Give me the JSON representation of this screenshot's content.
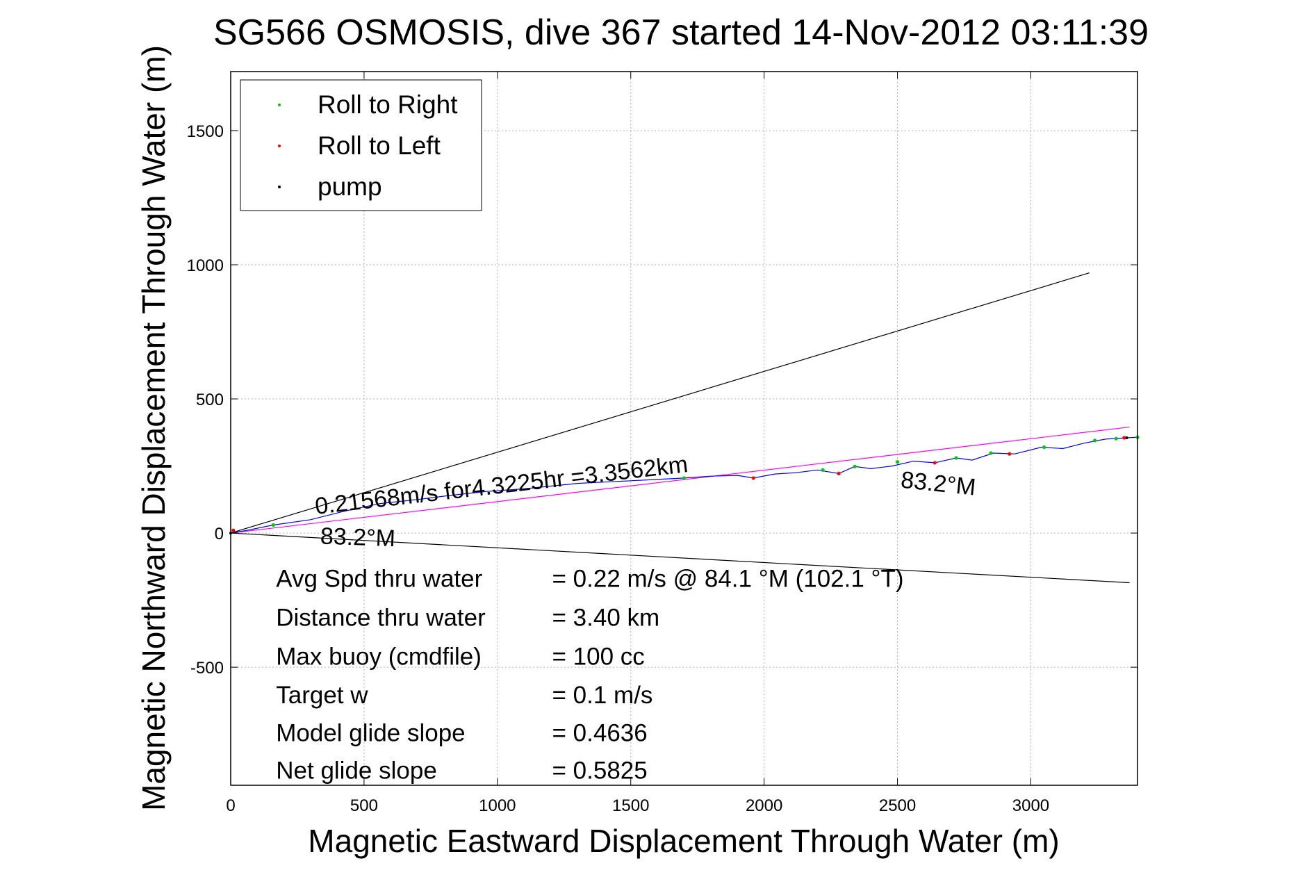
{
  "chart_data": {
    "type": "line",
    "title": "SG566 OSMOSIS, dive 367 started 14-Nov-2012 03:11:39",
    "xlabel": "Magnetic Eastward Displacement Through Water (m)",
    "ylabel": "Magnetic Northward Displacement Through Water (m)",
    "xlim": [
      0,
      3400
    ],
    "ylim": [
      -940,
      1720
    ],
    "xticks": [
      0,
      500,
      1000,
      1500,
      2000,
      2500,
      3000
    ],
    "yticks": [
      -500,
      0,
      500,
      1000,
      1500
    ],
    "grid": true,
    "legend": {
      "position": "top-left",
      "entries": [
        {
          "label": "Roll to Right",
          "color": "#00cc00"
        },
        {
          "label": "Roll to Left",
          "color": "#ff0000"
        },
        {
          "label": "pump",
          "color": "#000000"
        }
      ]
    },
    "track": {
      "color": "#0000ff",
      "x": [
        0,
        60,
        160,
        300,
        420,
        560,
        700,
        820,
        960,
        1100,
        1200,
        1300,
        1400,
        1500,
        1600,
        1700,
        1800,
        1900,
        1960,
        2040,
        2120,
        2200,
        2280,
        2340,
        2400,
        2480,
        2560,
        2640,
        2720,
        2780,
        2860,
        2940,
        3040,
        3120,
        3200,
        3280,
        3360,
        3400
      ],
      "y": [
        0,
        10,
        30,
        50,
        80,
        110,
        125,
        140,
        155,
        165,
        175,
        185,
        190,
        195,
        200,
        205,
        212,
        215,
        205,
        220,
        225,
        235,
        222,
        248,
        240,
        250,
        268,
        262,
        280,
        272,
        298,
        295,
        320,
        315,
        335,
        350,
        355,
        357
      ]
    },
    "roll_right_points": {
      "color": "#00cc00",
      "x": [
        160,
        1700,
        2220,
        2340,
        2500,
        2720,
        2850,
        3050,
        3240,
        3320,
        3400
      ],
      "y": [
        30,
        205,
        235,
        248,
        265,
        280,
        298,
        320,
        345,
        352,
        357
      ]
    },
    "roll_left_points": {
      "color": "#ff0000",
      "x": [
        10,
        1960,
        2280,
        2640,
        2920,
        3350
      ],
      "y": [
        10,
        205,
        222,
        262,
        295,
        355
      ]
    },
    "pump_points": {
      "color": "#000000",
      "x": [
        0,
        3360
      ],
      "y": [
        0,
        355
      ]
    },
    "reference_lines": [
      {
        "color": "#000000",
        "x": [
          0,
          3220
        ],
        "y": [
          0,
          970
        ]
      },
      {
        "color": "#000000",
        "x": [
          0,
          3370
        ],
        "y": [
          0,
          -185
        ]
      },
      {
        "color": "#ff00ff",
        "x": [
          0,
          3370
        ],
        "y": [
          0,
          395
        ]
      }
    ],
    "annotations": [
      {
        "text": "0.21568m/s for4.3225hr =3.3562km",
        "x": 320,
        "y": 70,
        "angle_deg": 6.5,
        "size": "large"
      },
      {
        "text": "83.2°M",
        "x": 335,
        "y": -40,
        "angle_deg": -2,
        "size": "large"
      },
      {
        "text": "83.2°M",
        "x": 2510,
        "y": 170,
        "angle_deg": -6,
        "size": "large"
      }
    ],
    "stats": {
      "x_label": 170,
      "x_value": 1205,
      "rows": [
        {
          "label": "Avg Spd thru water",
          "value": "=  0.22 m/s @  84.1 °M (102.1 °T)",
          "y": -200
        },
        {
          "label": "Distance thru water",
          "value": "=  3.40 km",
          "y": -345
        },
        {
          "label": "Max buoy (cmdfile)",
          "value": "= 100 cc",
          "y": -490
        },
        {
          "label": "Target w",
          "value": "= 0.1 m/s",
          "y": -635
        },
        {
          "label": "Model glide slope",
          "value": "= 0.4636",
          "y": -775
        },
        {
          "label": "Net glide slope",
          "value": "= 0.5825",
          "y": -915
        }
      ]
    }
  }
}
